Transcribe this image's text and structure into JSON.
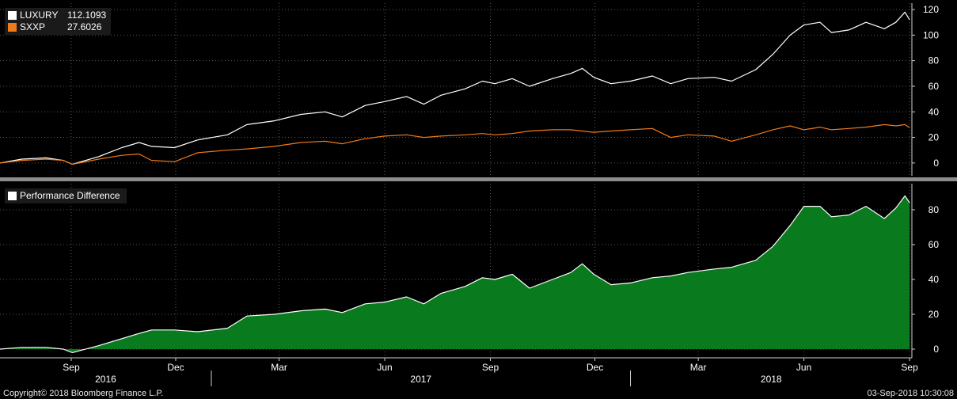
{
  "chart_data": [
    {
      "type": "line",
      "title": "",
      "xlabel": "",
      "ylabel": "",
      "ylim": [
        -10,
        125
      ],
      "y_ticks": [
        0,
        20,
        40,
        60,
        80,
        100,
        120
      ],
      "grid": true,
      "legend_position": "top-left",
      "x_time_range": [
        "2016-07-01",
        "2018-09-03"
      ],
      "series": [
        {
          "name": "LUXURY",
          "last_value_label": "112.1093",
          "color": "#ffffff",
          "points": [
            [
              "2016-07-01",
              0
            ],
            [
              "2016-07-20",
              3
            ],
            [
              "2016-08-10",
              4
            ],
            [
              "2016-08-25",
              2
            ],
            [
              "2016-09-02",
              -1
            ],
            [
              "2016-09-25",
              5
            ],
            [
              "2016-10-15",
              12
            ],
            [
              "2016-10-30",
              16
            ],
            [
              "2016-11-10",
              13
            ],
            [
              "2016-11-30",
              12
            ],
            [
              "2016-12-20",
              18
            ],
            [
              "2017-01-15",
              22
            ],
            [
              "2017-02-01",
              30
            ],
            [
              "2017-02-25",
              33
            ],
            [
              "2017-03-20",
              38
            ],
            [
              "2017-04-10",
              40
            ],
            [
              "2017-04-25",
              36
            ],
            [
              "2017-05-15",
              45
            ],
            [
              "2017-06-01",
              48
            ],
            [
              "2017-06-20",
              52
            ],
            [
              "2017-07-05",
              46
            ],
            [
              "2017-07-20",
              53
            ],
            [
              "2017-08-10",
              58
            ],
            [
              "2017-08-25",
              64
            ],
            [
              "2017-09-05",
              62
            ],
            [
              "2017-09-20",
              66
            ],
            [
              "2017-10-05",
              60
            ],
            [
              "2017-10-25",
              66
            ],
            [
              "2017-11-10",
              70
            ],
            [
              "2017-11-20",
              74
            ],
            [
              "2017-11-30",
              67
            ],
            [
              "2017-12-15",
              62
            ],
            [
              "2018-01-01",
              64
            ],
            [
              "2018-01-20",
              68
            ],
            [
              "2018-02-05",
              62
            ],
            [
              "2018-02-20",
              66
            ],
            [
              "2018-03-15",
              67
            ],
            [
              "2018-03-30",
              64
            ],
            [
              "2018-04-20",
              73
            ],
            [
              "2018-05-05",
              85
            ],
            [
              "2018-05-20",
              100
            ],
            [
              "2018-06-01",
              108
            ],
            [
              "2018-06-15",
              110
            ],
            [
              "2018-06-25",
              102
            ],
            [
              "2018-07-10",
              104
            ],
            [
              "2018-07-25",
              110
            ],
            [
              "2018-08-10",
              105
            ],
            [
              "2018-08-20",
              110
            ],
            [
              "2018-08-28",
              118
            ],
            [
              "2018-09-01",
              112
            ]
          ]
        },
        {
          "name": "SXXP",
          "last_value_label": "27.6026",
          "color": "#f07a1a",
          "points": [
            [
              "2016-07-01",
              0
            ],
            [
              "2016-07-20",
              2
            ],
            [
              "2016-08-10",
              3
            ],
            [
              "2016-08-25",
              2
            ],
            [
              "2016-09-02",
              -1
            ],
            [
              "2016-09-25",
              3
            ],
            [
              "2016-10-15",
              6
            ],
            [
              "2016-10-30",
              7
            ],
            [
              "2016-11-10",
              2
            ],
            [
              "2016-11-30",
              1
            ],
            [
              "2016-12-20",
              8
            ],
            [
              "2017-01-15",
              10
            ],
            [
              "2017-02-01",
              11
            ],
            [
              "2017-02-25",
              13
            ],
            [
              "2017-03-20",
              16
            ],
            [
              "2017-04-10",
              17
            ],
            [
              "2017-04-25",
              15
            ],
            [
              "2017-05-15",
              19
            ],
            [
              "2017-06-01",
              21
            ],
            [
              "2017-06-20",
              22
            ],
            [
              "2017-07-05",
              20
            ],
            [
              "2017-07-20",
              21
            ],
            [
              "2017-08-10",
              22
            ],
            [
              "2017-08-25",
              23
            ],
            [
              "2017-09-05",
              22
            ],
            [
              "2017-09-20",
              23
            ],
            [
              "2017-10-05",
              25
            ],
            [
              "2017-10-25",
              26
            ],
            [
              "2017-11-10",
              26
            ],
            [
              "2017-11-20",
              25
            ],
            [
              "2017-11-30",
              24
            ],
            [
              "2017-12-15",
              25
            ],
            [
              "2018-01-01",
              26
            ],
            [
              "2018-01-20",
              27
            ],
            [
              "2018-02-05",
              20
            ],
            [
              "2018-02-20",
              22
            ],
            [
              "2018-03-15",
              21
            ],
            [
              "2018-03-30",
              17
            ],
            [
              "2018-04-20",
              22
            ],
            [
              "2018-05-05",
              26
            ],
            [
              "2018-05-20",
              29
            ],
            [
              "2018-06-01",
              26
            ],
            [
              "2018-06-15",
              28
            ],
            [
              "2018-06-25",
              26
            ],
            [
              "2018-07-10",
              27
            ],
            [
              "2018-07-25",
              28
            ],
            [
              "2018-08-10",
              30
            ],
            [
              "2018-08-20",
              29
            ],
            [
              "2018-08-28",
              30
            ],
            [
              "2018-09-01",
              27.6
            ]
          ]
        }
      ]
    },
    {
      "type": "area",
      "title": "",
      "xlabel": "",
      "ylabel": "",
      "ylim": [
        -5,
        95
      ],
      "y_ticks": [
        0,
        20,
        40,
        60,
        80
      ],
      "grid": true,
      "legend_position": "top-left",
      "x_time_range": [
        "2016-07-01",
        "2018-09-03"
      ],
      "series": [
        {
          "name": "Performance Difference",
          "color": "#ffffff",
          "fill": "#0a7a1e",
          "points": [
            [
              "2016-07-01",
              0
            ],
            [
              "2016-07-20",
              1
            ],
            [
              "2016-08-10",
              1
            ],
            [
              "2016-08-25",
              0
            ],
            [
              "2016-09-02",
              -2
            ],
            [
              "2016-09-25",
              2
            ],
            [
              "2016-10-15",
              6
            ],
            [
              "2016-10-30",
              9
            ],
            [
              "2016-11-10",
              11
            ],
            [
              "2016-11-30",
              11
            ],
            [
              "2016-12-20",
              10
            ],
            [
              "2017-01-15",
              12
            ],
            [
              "2017-02-01",
              19
            ],
            [
              "2017-02-25",
              20
            ],
            [
              "2017-03-20",
              22
            ],
            [
              "2017-04-10",
              23
            ],
            [
              "2017-04-25",
              21
            ],
            [
              "2017-05-15",
              26
            ],
            [
              "2017-06-01",
              27
            ],
            [
              "2017-06-20",
              30
            ],
            [
              "2017-07-05",
              26
            ],
            [
              "2017-07-20",
              32
            ],
            [
              "2017-08-10",
              36
            ],
            [
              "2017-08-25",
              41
            ],
            [
              "2017-09-05",
              40
            ],
            [
              "2017-09-20",
              43
            ],
            [
              "2017-10-05",
              35
            ],
            [
              "2017-10-25",
              40
            ],
            [
              "2017-11-10",
              44
            ],
            [
              "2017-11-20",
              49
            ],
            [
              "2017-11-30",
              43
            ],
            [
              "2017-12-15",
              37
            ],
            [
              "2018-01-01",
              38
            ],
            [
              "2018-01-20",
              41
            ],
            [
              "2018-02-05",
              42
            ],
            [
              "2018-02-20",
              44
            ],
            [
              "2018-03-15",
              46
            ],
            [
              "2018-03-30",
              47
            ],
            [
              "2018-04-20",
              51
            ],
            [
              "2018-05-05",
              59
            ],
            [
              "2018-05-20",
              71
            ],
            [
              "2018-06-01",
              82
            ],
            [
              "2018-06-15",
              82
            ],
            [
              "2018-06-25",
              76
            ],
            [
              "2018-07-10",
              77
            ],
            [
              "2018-07-25",
              82
            ],
            [
              "2018-08-10",
              75
            ],
            [
              "2018-08-20",
              81
            ],
            [
              "2018-08-28",
              88
            ],
            [
              "2018-09-01",
              84
            ]
          ]
        }
      ]
    }
  ],
  "x_axis": {
    "month_ticks": [
      {
        "date": "2016-09-01",
        "label": "Sep"
      },
      {
        "date": "2016-12-01",
        "label": "Dec"
      },
      {
        "date": "2017-03-01",
        "label": "Mar"
      },
      {
        "date": "2017-06-01",
        "label": "Jun"
      },
      {
        "date": "2017-09-01",
        "label": "Sep"
      },
      {
        "date": "2017-12-01",
        "label": "Dec"
      },
      {
        "date": "2018-03-01",
        "label": "Mar"
      },
      {
        "date": "2018-06-01",
        "label": "Jun"
      },
      {
        "date": "2018-09-01",
        "label": "Sep"
      }
    ],
    "years": [
      {
        "label": "2016",
        "start": "2016-07-01",
        "end": "2017-01-01"
      },
      {
        "label": "2017",
        "start": "2017-01-01",
        "end": "2018-01-01"
      },
      {
        "label": "2018",
        "start": "2018-01-01",
        "end": "2018-09-03"
      }
    ]
  },
  "footer": {
    "copyright": "Copyright© 2018 Bloomberg Finance L.P.",
    "timestamp": "03-Sep-2018 10:30:08"
  }
}
